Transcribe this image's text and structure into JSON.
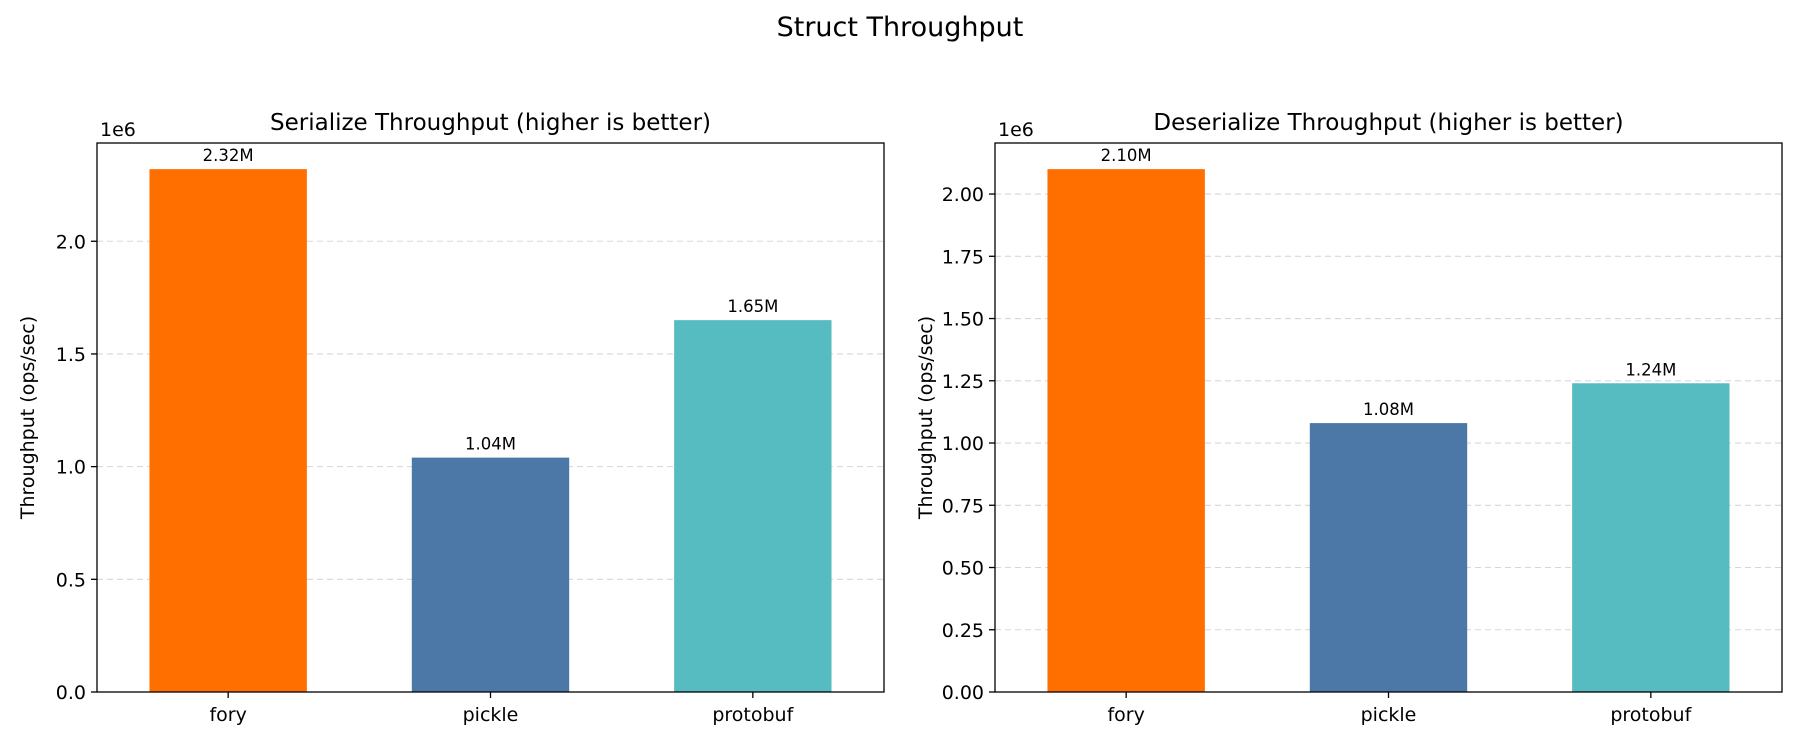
{
  "figure": {
    "title": "Struct Throughput"
  },
  "chart_data": [
    {
      "type": "bar",
      "title": "Serialize Throughput (higher is better)",
      "xlabel": "",
      "ylabel": "Throughput (ops/sec)",
      "offset_label": "1e6",
      "categories": [
        "fory",
        "pickle",
        "protobuf"
      ],
      "values": [
        2320000,
        1040000,
        1650000
      ],
      "value_labels": [
        "2.32M",
        "1.04M",
        "1.65M"
      ],
      "colors": [
        "#ff6f00",
        "#4c78a8",
        "#56bcc2"
      ],
      "ylim": [
        0,
        2436000
      ],
      "yticks": [
        0,
        500000,
        1000000,
        1500000,
        2000000
      ],
      "ytick_labels": [
        "0.0",
        "0.5",
        "1.0",
        "1.5",
        "2.0"
      ],
      "grid": "y-dashed",
      "legend": "none"
    },
    {
      "type": "bar",
      "title": "Deserialize Throughput (higher is better)",
      "xlabel": "",
      "ylabel": "Throughput (ops/sec)",
      "offset_label": "1e6",
      "categories": [
        "fory",
        "pickle",
        "protobuf"
      ],
      "values": [
        2100000,
        1080000,
        1240000
      ],
      "value_labels": [
        "2.10M",
        "1.08M",
        "1.24M"
      ],
      "colors": [
        "#ff6f00",
        "#4c78a8",
        "#56bcc2"
      ],
      "ylim": [
        0,
        2205000
      ],
      "yticks": [
        0,
        250000,
        500000,
        750000,
        1000000,
        1250000,
        1500000,
        1750000,
        2000000
      ],
      "ytick_labels": [
        "0.00",
        "0.25",
        "0.50",
        "0.75",
        "1.00",
        "1.25",
        "1.50",
        "1.75",
        "2.00"
      ],
      "grid": "y-dashed",
      "legend": "none"
    }
  ]
}
